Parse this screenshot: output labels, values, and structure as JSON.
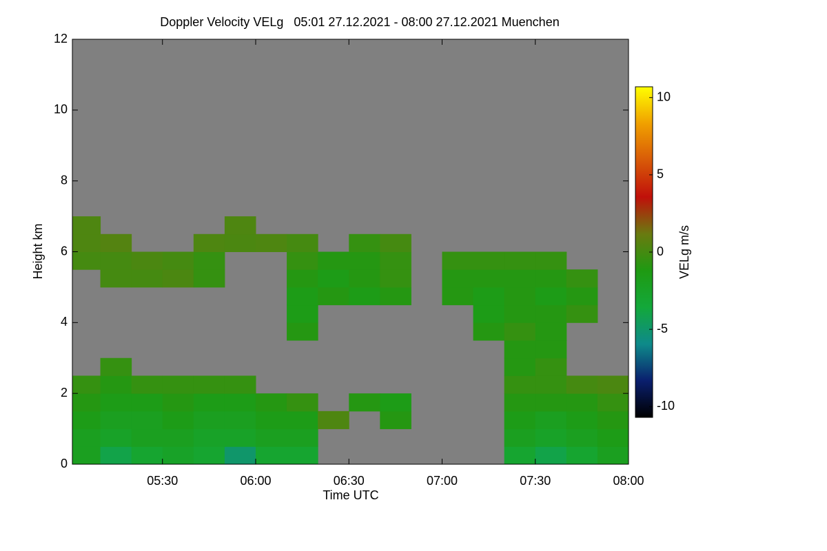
{
  "chart_data": {
    "type": "heatmap",
    "title": "Doppler Velocity VELg   05:01 27.12.2021 - 08:00 27.12.2021 Muenchen",
    "x_label": "Time UTC",
    "y_label": "Height km",
    "colorbar_label": "VELg m/s",
    "background_color": "#808080",
    "xlim": [
      301,
      480
    ],
    "xticks": [
      {
        "value": 330,
        "label": "05:30"
      },
      {
        "value": 360,
        "label": "06:00"
      },
      {
        "value": 390,
        "label": "06:30"
      },
      {
        "value": 420,
        "label": "07:00"
      },
      {
        "value": 450,
        "label": "07:30"
      },
      {
        "value": 480,
        "label": "08:00"
      }
    ],
    "ylim": [
      0,
      12
    ],
    "yticks": [
      0,
      2,
      4,
      6,
      8,
      10,
      12
    ],
    "clim": [
      -10.7,
      10.7
    ],
    "cticks": [
      -10,
      -5,
      0,
      5,
      10
    ],
    "colormap": [
      "#000000",
      "#0a1f6e",
      "#0e8a8a",
      "#13a83a",
      "#1f9a12",
      "#6a7a10",
      "#c0100a",
      "#d85a08",
      "#f0a000",
      "#ffff00"
    ],
    "x_bins": [
      300,
      310,
      320,
      330,
      340,
      350,
      360,
      370,
      380,
      390,
      400,
      410,
      420,
      430,
      440,
      450,
      460,
      470,
      480
    ],
    "y_bins": [
      0,
      0.5,
      1,
      1.5,
      2,
      2.5,
      3,
      3.5,
      4,
      4.5,
      5,
      5.5,
      6,
      6.5,
      7
    ],
    "z": [
      [
        -2,
        -4,
        -3,
        -2.5,
        -3,
        -5,
        -3,
        -3,
        null,
        null,
        null,
        null,
        null,
        null,
        -3,
        -4,
        -3,
        -2
      ],
      [
        -2,
        -2.5,
        -2,
        -2,
        -2.5,
        -2.5,
        -2,
        -2,
        null,
        null,
        null,
        null,
        null,
        null,
        -2,
        -2.5,
        -2,
        -1.5
      ],
      [
        -1.5,
        -2,
        -2,
        -1.5,
        -2,
        -2,
        -1.5,
        -1.5,
        0.3,
        null,
        -1,
        null,
        null,
        null,
        -1.5,
        -2,
        -1.5,
        -1
      ],
      [
        -1,
        -1.5,
        -1.5,
        -1,
        -1.5,
        -1.5,
        -1,
        -0.5,
        null,
        -1,
        -1.5,
        null,
        null,
        null,
        -1,
        -1,
        -1,
        -0.5
      ],
      [
        -0.5,
        -1,
        -0.5,
        -0.5,
        -0.5,
        -0.5,
        null,
        null,
        null,
        null,
        null,
        null,
        null,
        null,
        -0.5,
        -0.5,
        0,
        0.2
      ],
      [
        null,
        -0.5,
        null,
        null,
        null,
        null,
        null,
        null,
        null,
        null,
        null,
        null,
        null,
        null,
        -1,
        -0.5,
        null,
        null
      ],
      [
        null,
        null,
        null,
        null,
        null,
        null,
        null,
        null,
        null,
        null,
        null,
        null,
        null,
        null,
        -1,
        -1,
        null,
        null
      ],
      [
        null,
        null,
        null,
        null,
        null,
        null,
        null,
        -1,
        null,
        null,
        null,
        null,
        null,
        -1,
        -0.5,
        -1,
        null,
        null
      ],
      [
        null,
        null,
        null,
        null,
        null,
        null,
        null,
        -1.5,
        null,
        null,
        null,
        null,
        null,
        -1.5,
        -1,
        -1,
        -0.5,
        null
      ],
      [
        null,
        null,
        null,
        null,
        null,
        null,
        null,
        -1.5,
        -1,
        -1.5,
        -1,
        null,
        -1,
        -1.5,
        -1,
        -1.5,
        -1,
        null
      ],
      [
        null,
        0,
        0,
        0.2,
        -0.5,
        null,
        null,
        -1,
        -1.5,
        -1,
        -0.5,
        null,
        -1,
        -1,
        -1,
        -1,
        -0.5,
        null
      ],
      [
        0,
        0,
        0.2,
        0,
        -0.5,
        null,
        null,
        -0.5,
        -1,
        -1,
        -0.5,
        null,
        -0.5,
        -0.5,
        -0.5,
        -0.5,
        null,
        null
      ],
      [
        0.3,
        0.5,
        null,
        null,
        0.3,
        0.2,
        0.3,
        0,
        null,
        -0.5,
        0,
        null,
        null,
        null,
        null,
        null,
        null,
        null
      ],
      [
        0.3,
        null,
        null,
        null,
        null,
        0.3,
        null,
        null,
        null,
        null,
        null,
        null,
        null,
        null,
        null,
        null,
        null,
        null
      ]
    ]
  }
}
